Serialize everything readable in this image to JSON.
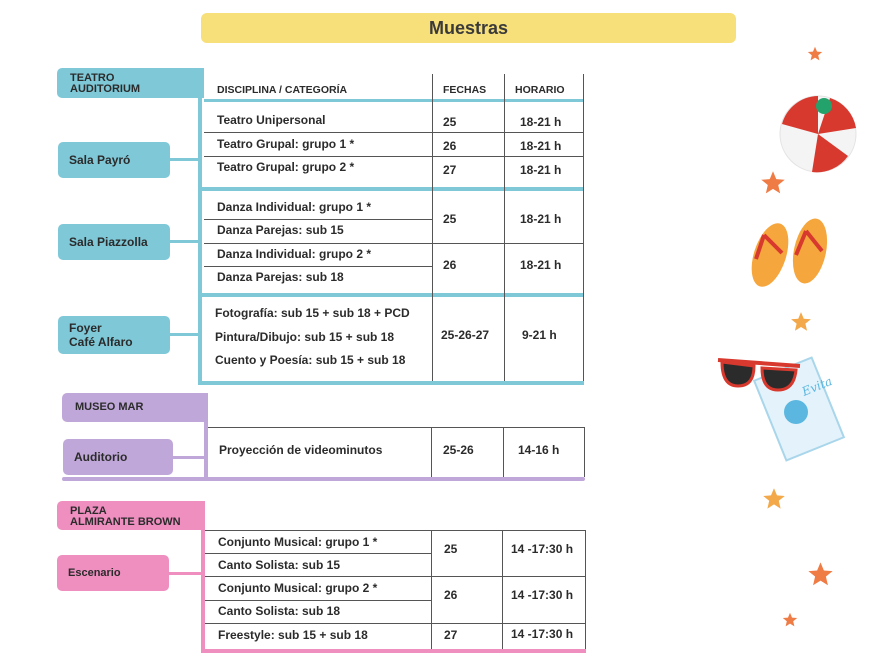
{
  "title": "Muestras",
  "colors": {
    "title_bg": "#f7df7a",
    "teatro": "#7ec8d8",
    "museo": "#c0a7d9",
    "plaza": "#ee8fc0"
  },
  "headers": {
    "disciplina": "DISCIPLINA / CATEGORÍA",
    "fechas": "FECHAS",
    "horario": "HORARIO"
  },
  "teatro": {
    "venue_line1": "TEATRO",
    "venue_line2": "AUDITORIUM",
    "payro": {
      "room": "Sala Payró",
      "rows": [
        {
          "disc": "Teatro Unipersonal",
          "fecha": "25",
          "hora": "18-21 h"
        },
        {
          "disc": "Teatro Grupal: grupo 1 *",
          "fecha": "26",
          "hora": "18-21 h"
        },
        {
          "disc": "Teatro Grupal: grupo 2 *",
          "fecha": "27",
          "hora": "18-21 h"
        }
      ]
    },
    "piazzolla": {
      "room": "Sala Piazzolla",
      "rows": [
        {
          "disc": "Danza Individual: grupo 1 *"
        },
        {
          "disc": "Danza Parejas: sub 15"
        },
        {
          "disc": "Danza Individual: grupo 2 *"
        },
        {
          "disc": "Danza Parejas: sub 18"
        }
      ],
      "group1": {
        "fecha": "25",
        "hora": "18-21 h"
      },
      "group2": {
        "fecha": "26",
        "hora": "18-21 h"
      }
    },
    "foyer": {
      "room_line1": "Foyer",
      "room_line2": "Café Alfaro",
      "rows": [
        {
          "disc": "Fotografía: sub 15 + sub 18 + PCD"
        },
        {
          "disc": "Pintura/Dibujo: sub 15 + sub 18"
        },
        {
          "disc": "Cuento y Poesía: sub 15 + sub 18"
        }
      ],
      "fecha": "25-26-27",
      "hora": "9-21 h"
    }
  },
  "museo": {
    "venue": "MUSEO MAR",
    "room": "Auditorio",
    "row": {
      "disc": "Proyección de videominutos",
      "fecha": "25-26",
      "hora": "14-16 h"
    }
  },
  "plaza": {
    "venue_line1": "PLAZA",
    "venue_line2": "ALMIRANTE BROWN",
    "room": "Escenario",
    "rows": [
      {
        "disc": "Conjunto Musical: grupo 1 *"
      },
      {
        "disc": "Canto Solista: sub 15"
      },
      {
        "disc": "Conjunto Musical: grupo 2 *"
      },
      {
        "disc": "Canto Solista: sub 18"
      },
      {
        "disc": "Freestyle: sub 15 + sub 18"
      }
    ],
    "group1": {
      "fecha": "25",
      "hora": "14 -17:30 h"
    },
    "group2": {
      "fecha": "26",
      "hora": "14 -17:30 h"
    },
    "group3": {
      "fecha": "27",
      "hora": "14 -17:30 h"
    }
  }
}
